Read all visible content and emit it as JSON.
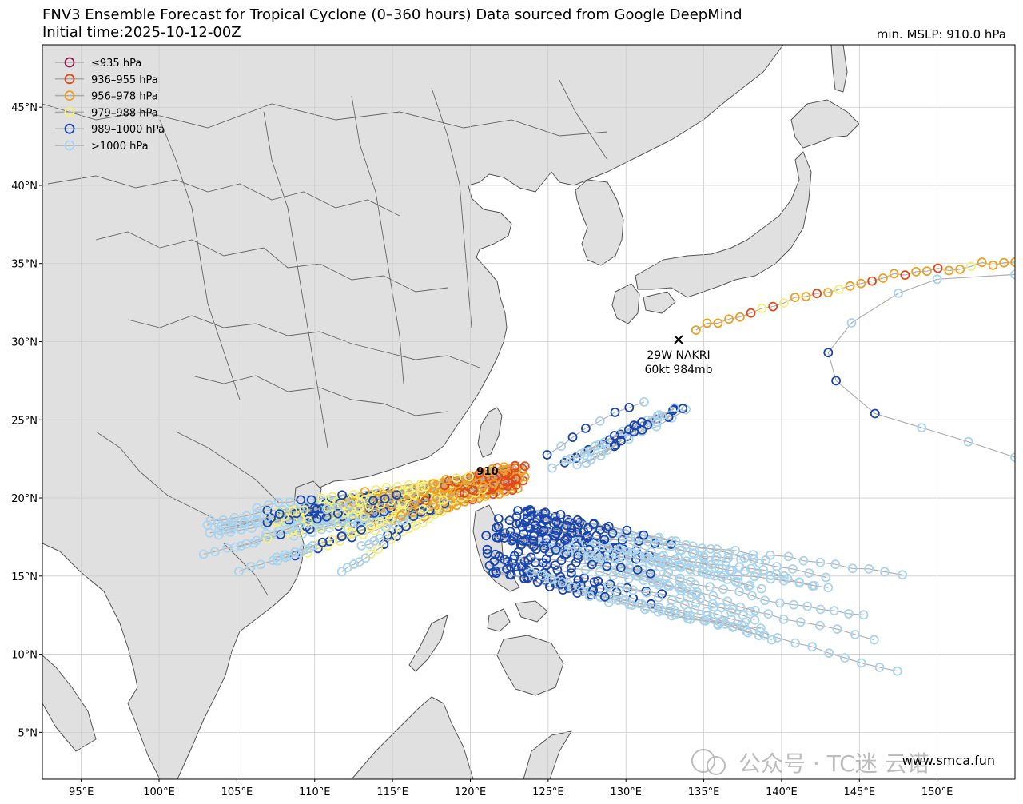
{
  "title": {
    "line1": "FNV3 Ensemble Forecast for Tropical Cyclone (0–360 hours) Data sourced from Google DeepMind",
    "line2": "Initial time:2025-10-12-00Z",
    "min_mslp": "min. MSLP: 910.0 hPa"
  },
  "map": {
    "lon_range": [
      92.5,
      155
    ],
    "lat_range": [
      2,
      49
    ],
    "lon_ticks": [
      "95°E",
      "100°E",
      "105°E",
      "110°E",
      "115°E",
      "120°E",
      "125°E",
      "130°E",
      "135°E",
      "140°E",
      "145°E",
      "150°E"
    ],
    "lat_ticks": [
      "5°N",
      "10°N",
      "15°N",
      "20°N",
      "25°N",
      "30°N",
      "35°N",
      "40°N",
      "45°N"
    ],
    "land_color": "#e0e0e0",
    "ocean_color": "#ffffff",
    "grid": true
  },
  "legend": {
    "entries": [
      {
        "label": "≤935 hPa",
        "color": "#8b1a4a"
      },
      {
        "label": "936–955 hPa",
        "color": "#e34a1a"
      },
      {
        "label": "956–978 hPa",
        "color": "#f0a020"
      },
      {
        "label": "979–988 hPa",
        "color": "#f5f07a"
      },
      {
        "label": "989–1000 hPa",
        "color": "#1845b0"
      },
      {
        "label": ">1000 hPa",
        "color": "#a9d4ef"
      }
    ]
  },
  "storm": {
    "name": "29W NAKRI",
    "intensity": "60kt 984mb",
    "lon": 133.5,
    "lat": 30.1
  },
  "min_marker": {
    "label": "910",
    "lon": 121.2,
    "lat": 21.6
  },
  "watermark": {
    "text": "公众号 · TC迷 云诺",
    "url": "www.smca.fun"
  }
}
